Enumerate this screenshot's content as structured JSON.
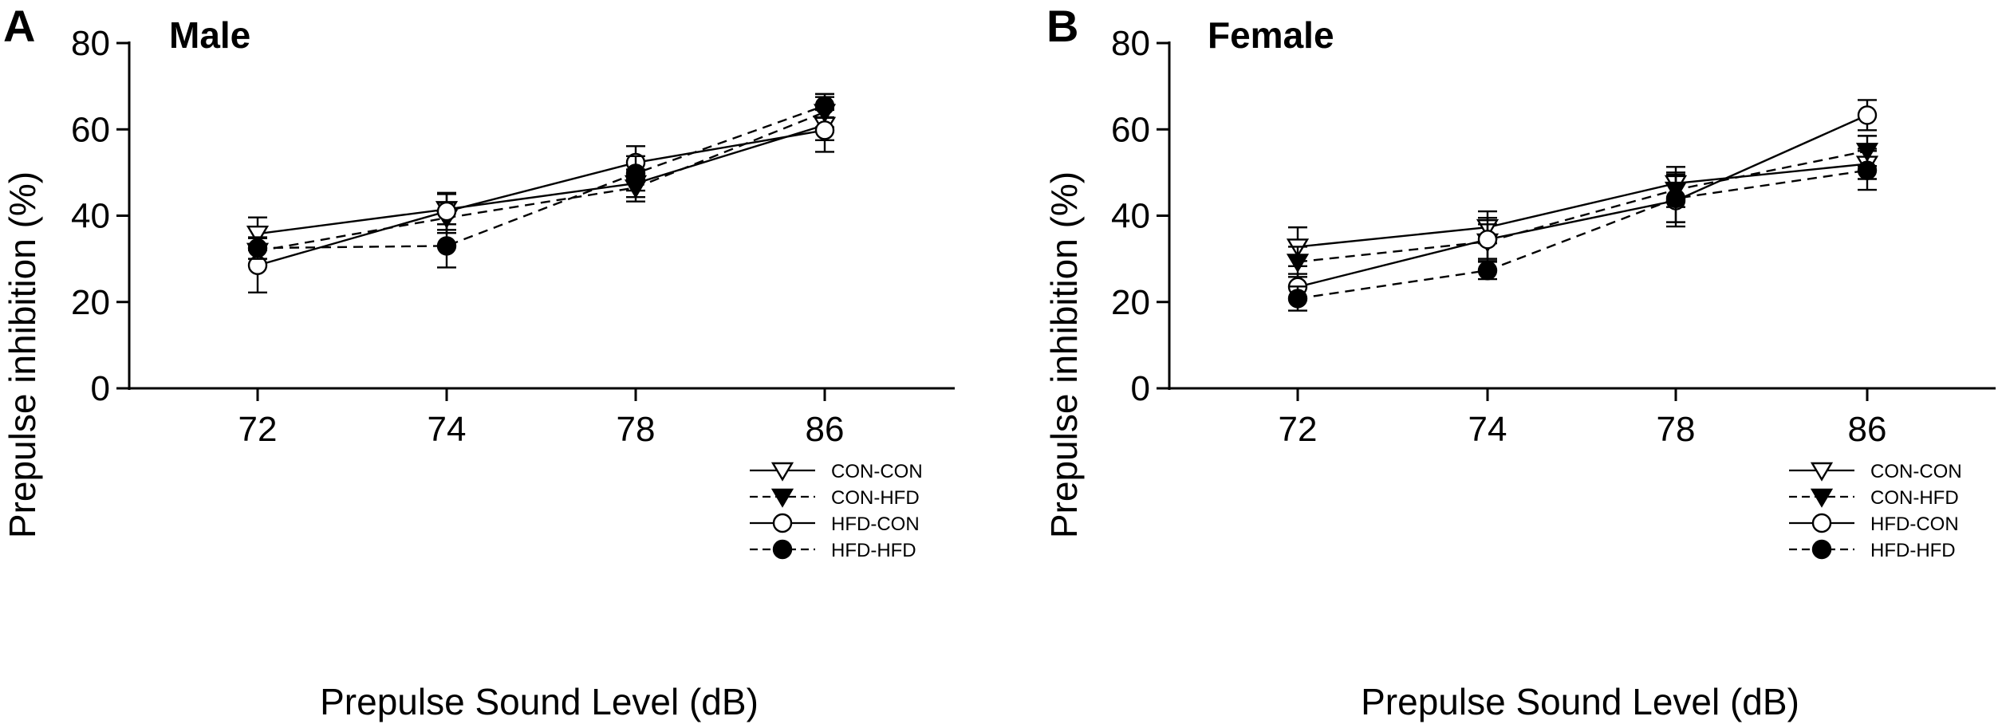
{
  "chart_data": [
    {
      "type": "line",
      "panel": "A",
      "title": "Male",
      "xlabel": "Prepulse Sound Level (dB)",
      "ylabel": "Prepulse inhibition (%)",
      "categories": [
        "72",
        "74",
        "78",
        "86"
      ],
      "ylim": [
        0,
        80
      ],
      "yticks": [
        "0",
        "20",
        "40",
        "60",
        "80"
      ],
      "grid": false,
      "legend_position": "bottom-right",
      "series": [
        {
          "name": "CON-CON",
          "marker": "triangle-down-open",
          "line": "solid",
          "values": [
            35.8,
            41.5,
            47.5,
            61.0
          ],
          "errors": [
            3.8,
            3.5,
            3.2,
            3.5
          ]
        },
        {
          "name": "CON-HFD",
          "marker": "triangle-down-filled",
          "line": "dashed",
          "values": [
            31.8,
            39.5,
            46.5,
            64.0
          ],
          "errors": [
            3.0,
            3.5,
            3.2,
            3.5
          ]
        },
        {
          "name": "HFD-CON",
          "marker": "circle-open",
          "line": "solid",
          "values": [
            28.5,
            41.0,
            52.3,
            59.8
          ],
          "errors": [
            6.3,
            4.3,
            3.8,
            5.0
          ]
        },
        {
          "name": "HFD-HFD",
          "marker": "circle-filled",
          "line": "dashed",
          "values": [
            32.5,
            33.0,
            49.8,
            65.5
          ],
          "errors": [
            2.5,
            5.0,
            4.0,
            2.7
          ]
        }
      ]
    },
    {
      "type": "line",
      "panel": "B",
      "title": "Female",
      "xlabel": "Prepulse Sound Level (dB)",
      "ylabel": "Prepulse inhibition (%)",
      "categories": [
        "72",
        "74",
        "78",
        "86"
      ],
      "ylim": [
        0,
        80
      ],
      "yticks": [
        "0",
        "20",
        "40",
        "60",
        "80"
      ],
      "grid": false,
      "legend_position": "bottom-right",
      "series": [
        {
          "name": "CON-CON",
          "marker": "triangle-down-open",
          "line": "solid",
          "values": [
            32.8,
            37.3,
            47.5,
            52.0
          ],
          "errors": [
            4.5,
            3.7,
            3.8,
            3.5
          ]
        },
        {
          "name": "CON-HFD",
          "marker": "triangle-down-filled",
          "line": "dashed",
          "values": [
            29.3,
            34.0,
            46.0,
            55.0
          ],
          "errors": [
            3.5,
            4.0,
            4.0,
            3.5
          ]
        },
        {
          "name": "HFD-CON",
          "marker": "circle-open",
          "line": "solid",
          "values": [
            23.5,
            34.5,
            43.5,
            63.3
          ],
          "errors": [
            3.0,
            5.0,
            6.0,
            3.5
          ]
        },
        {
          "name": "HFD-HFD",
          "marker": "circle-filled",
          "line": "dashed",
          "values": [
            20.8,
            27.3,
            44.0,
            50.5
          ],
          "errors": [
            2.8,
            2.0,
            5.5,
            4.5
          ]
        }
      ]
    }
  ]
}
